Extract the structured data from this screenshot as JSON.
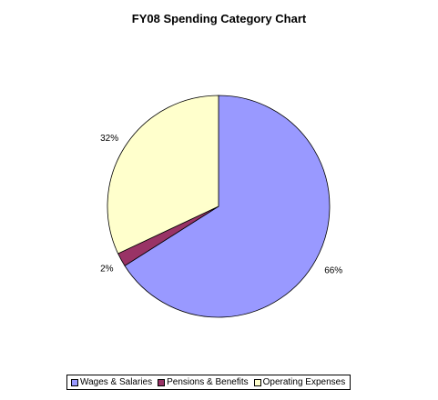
{
  "chart_data": {
    "type": "pie",
    "title": "FY08 Spending Category Chart",
    "slices": [
      {
        "label": "Wages & Salaries",
        "value": 66,
        "display": "66%",
        "color": "#9999ff"
      },
      {
        "label": "Pensions & Benefits",
        "value": 2,
        "display": "2%",
        "color": "#993366"
      },
      {
        "label": "Operating Expenses",
        "value": 32,
        "display": "32%",
        "color": "#ffffcc"
      }
    ],
    "legend_position": "bottom",
    "start": "12 o'clock, clockwise"
  }
}
